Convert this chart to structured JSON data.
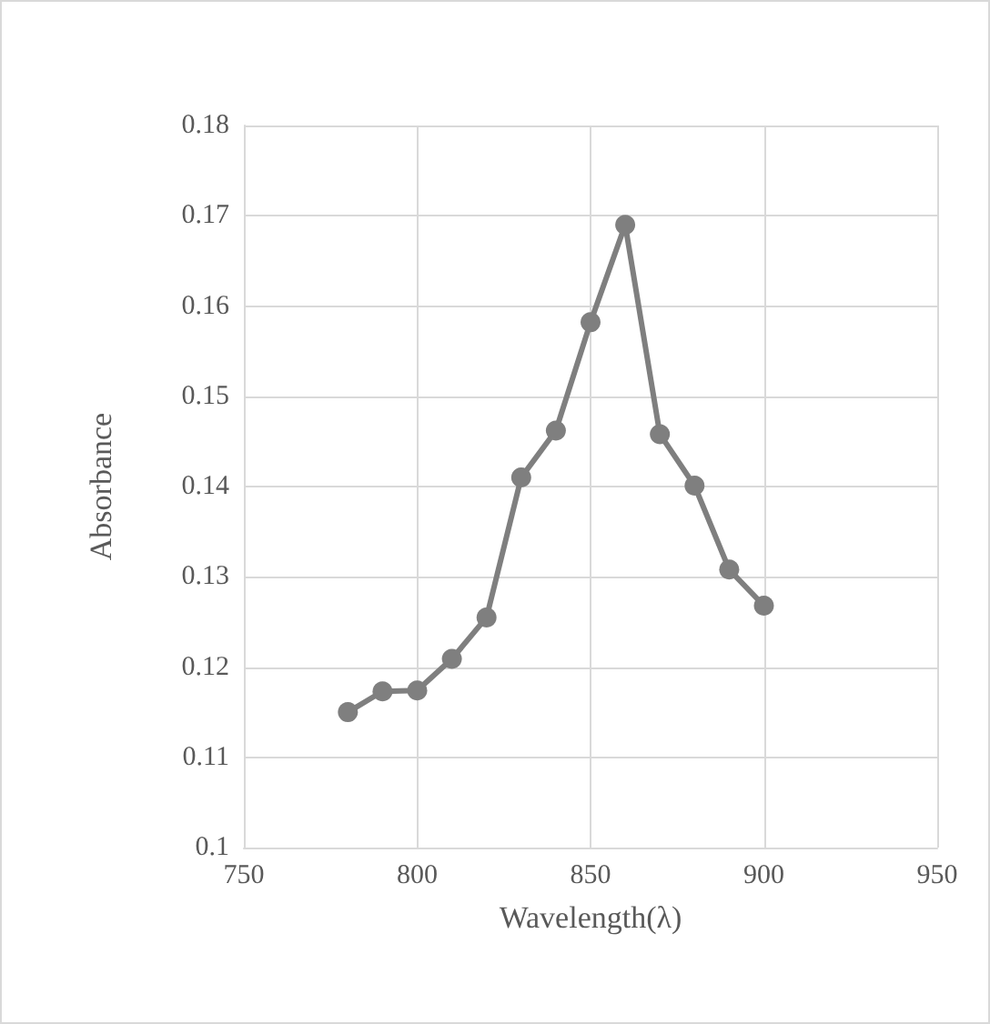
{
  "chart_data": {
    "type": "line",
    "xlabel": "Wavelength(λ)",
    "ylabel": "Absorbance",
    "x": [
      780,
      790,
      800,
      810,
      820,
      830,
      840,
      850,
      860,
      870,
      880,
      890,
      900
    ],
    "series": [
      {
        "color": "#7f7f7f",
        "values": [
          0.115,
          0.1173,
          0.1174,
          0.1209,
          0.1255,
          0.141,
          0.1462,
          0.1582,
          0.169,
          0.1458,
          0.1401,
          0.1308,
          0.1268
        ]
      }
    ],
    "xlim": [
      750,
      950
    ],
    "xticks": [
      750,
      800,
      850,
      900,
      950
    ],
    "ylim": [
      0.1,
      0.18
    ],
    "yticks": [
      0.1,
      0.11,
      0.12,
      0.13,
      0.14,
      0.15,
      0.16,
      0.17,
      0.18
    ],
    "grid": true,
    "marker": "circle",
    "line_style": "solid"
  }
}
